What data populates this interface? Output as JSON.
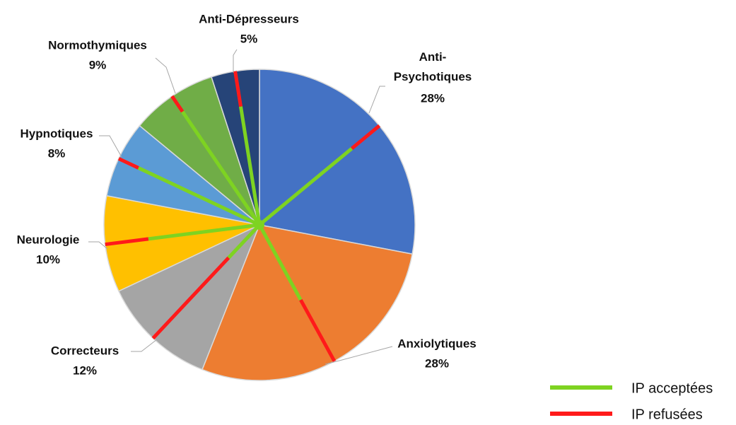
{
  "chart_data": {
    "type": "pie",
    "categories": [
      "Anti-Psychotiques",
      "Anxiolytiques",
      "Correcteurs",
      "Neurologie",
      "Hypnotiques",
      "Normothymiques",
      "Anti-Dépresseurs"
    ],
    "values": [
      28,
      28,
      12,
      10,
      8,
      9,
      5
    ],
    "value_labels": [
      "28%",
      "28%",
      "12%",
      "10%",
      "8%",
      "9%",
      "5%"
    ],
    "colors": [
      "#4472c4",
      "#ed7d31",
      "#a5a5a5",
      "#ffc000",
      "#5b9bd5",
      "#70ad47",
      "#264478"
    ],
    "series": [
      {
        "name": "IP acceptées",
        "color": "#7ed321",
        "values": [
          77,
          55,
          29,
          72,
          86,
          88,
          77
        ]
      },
      {
        "name": "IP refusées",
        "color": "#ff1a1a",
        "values": [
          23,
          45,
          71,
          28,
          14,
          12,
          23
        ]
      }
    ]
  }
}
